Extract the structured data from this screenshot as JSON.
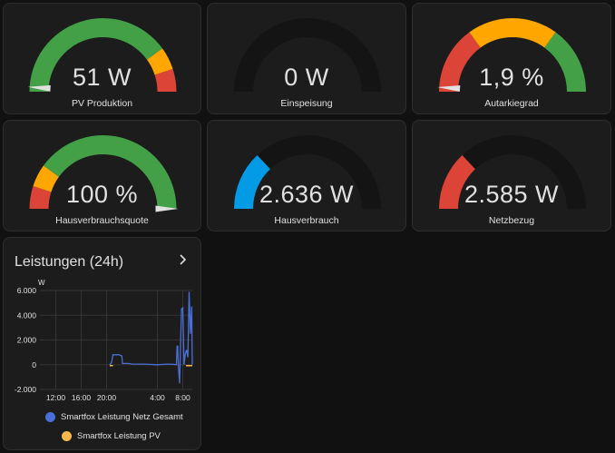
{
  "gauges": [
    {
      "value": "51 W",
      "label": "PV Produktion",
      "fraction": 0.02,
      "segments": [
        {
          "from": 0,
          "to": 0.8,
          "color": "#43a047"
        },
        {
          "from": 0.8,
          "to": 0.9,
          "color": "#ffa600"
        },
        {
          "from": 0.9,
          "to": 1,
          "color": "#db4437"
        }
      ],
      "empty_color": null
    },
    {
      "value": "0 W",
      "label": "Einspeisung",
      "fraction": 0,
      "segments": [],
      "empty_color": "#141414"
    },
    {
      "value": "1,9 %",
      "label": "Autarkiegrad",
      "fraction": 0.019,
      "segments": [
        {
          "from": 0,
          "to": 0.3,
          "color": "#db4437"
        },
        {
          "from": 0.3,
          "to": 0.7,
          "color": "#ffa600"
        },
        {
          "from": 0.7,
          "to": 1,
          "color": "#43a047"
        }
      ],
      "empty_color": null
    },
    {
      "value": "100 %",
      "label": "Hausverbrauchsquote",
      "fraction": 1,
      "segments": [
        {
          "from": 0,
          "to": 0.1,
          "color": "#db4437"
        },
        {
          "from": 0.1,
          "to": 0.2,
          "color": "#ffa600"
        },
        {
          "from": 0.2,
          "to": 1,
          "color": "#43a047"
        }
      ],
      "empty_color": null
    },
    {
      "value": "2.636 W",
      "label": "Hausverbrauch",
      "fraction": 0.26,
      "segments": [],
      "fill_color": "#039be5",
      "empty_color": "#141414"
    },
    {
      "value": "2.585 W",
      "label": "Netzbezug",
      "fraction": 0.26,
      "segments": [],
      "fill_color": "#db4437",
      "empty_color": "#141414"
    }
  ],
  "history": {
    "title": "Leistungen (24h)",
    "unit_label": "W",
    "legend": [
      {
        "label": "Smartfox Leistung Netz Gesamt",
        "color": "#4a6fd8"
      },
      {
        "label": "Smartfox Leistung PV",
        "color": "#f8b94c"
      }
    ]
  },
  "chart_data": {
    "type": "line",
    "ylabel": "W",
    "ylim": [
      -2000,
      6000
    ],
    "yticks": [
      "6.000",
      "4.000",
      "2.000",
      "0",
      "-2.000"
    ],
    "ytick_values": [
      6000,
      4000,
      2000,
      0,
      -2000
    ],
    "xticks": [
      "12:00",
      "16:00",
      "20:00",
      "4:00",
      "8:00"
    ],
    "xtick_hours": [
      12,
      16,
      20,
      28,
      32
    ],
    "xlim_hours": [
      9.5,
      33.5
    ],
    "series": [
      {
        "name": "Smartfox Leistung Netz Gesamt",
        "color": "#4a6fd8",
        "x": [
          20.5,
          20.8,
          21.0,
          22.0,
          22.4,
          22.5,
          23.5,
          24.0,
          26.0,
          28.0,
          29.5,
          30.5,
          31.0,
          31.1,
          31.2,
          31.3,
          31.5,
          31.6,
          31.8,
          32.0,
          32.2,
          32.4,
          32.6,
          32.8,
          33.0,
          33.2,
          33.4,
          33.5
        ],
        "y": [
          0,
          200,
          800,
          800,
          700,
          100,
          100,
          50,
          50,
          0,
          50,
          30,
          0,
          1500,
          1500,
          0,
          -1500,
          600,
          4500,
          4600,
          0,
          900,
          1200,
          600,
          5900,
          2500,
          4700,
          0
        ]
      },
      {
        "name": "Smartfox Leistung PV",
        "color": "#f8b94c",
        "x": [
          20.5,
          21.0,
          31.5,
          32.5,
          33.0,
          33.5
        ],
        "y": [
          0,
          0,
          0,
          0,
          0,
          0
        ]
      }
    ]
  }
}
